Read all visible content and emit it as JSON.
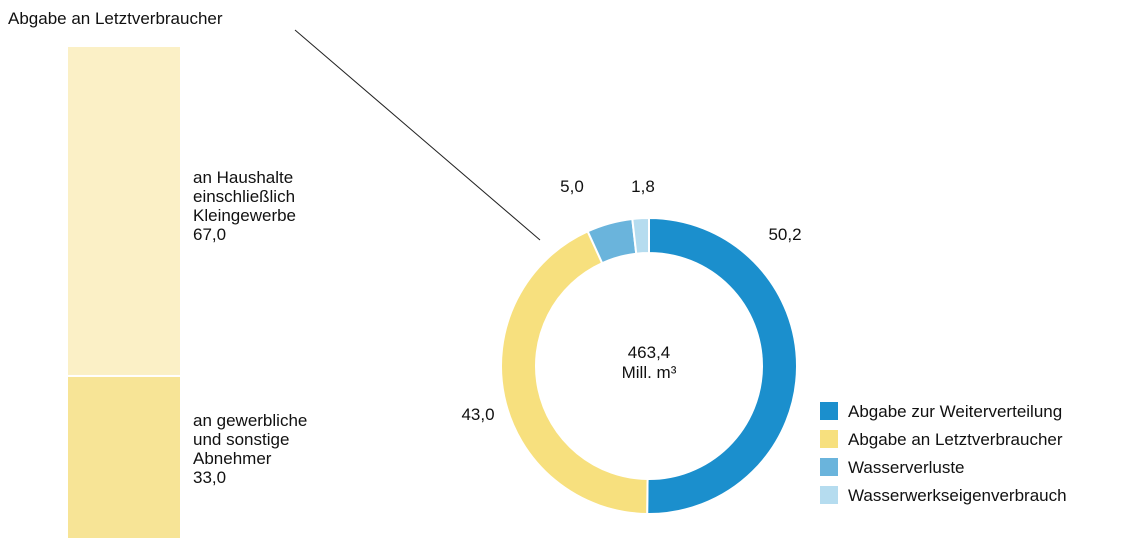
{
  "chart_data": [
    {
      "type": "pie",
      "categories": [
        "Abgabe zur Weiterverteilung",
        "Abgabe an Letztverbraucher",
        "Wasserverluste",
        "Wasserwerkseigenverbrauch"
      ],
      "values": [
        50.2,
        43.0,
        5.0,
        1.8
      ],
      "value_labels": [
        "50,2",
        "43,0",
        "5,0",
        "1,8"
      ],
      "colors": [
        "#1b8fcd",
        "#f7e07e",
        "#6ab4dc",
        "#b5dcef"
      ],
      "center_labels": [
        "463,4",
        "Mill. m³"
      ]
    },
    {
      "type": "bar",
      "title": "Abgabe an Letztverbraucher",
      "categories": [
        [
          "an Haushalte",
          "einschließlich",
          "Kleingewerbe"
        ],
        [
          "an gewerbliche",
          "und sonstige",
          "Abnehmer"
        ]
      ],
      "values": [
        67.0,
        33.0
      ],
      "value_labels": [
        "67,0",
        "33,0"
      ],
      "colors": [
        "#fbf0c6",
        "#f7e496"
      ]
    }
  ]
}
